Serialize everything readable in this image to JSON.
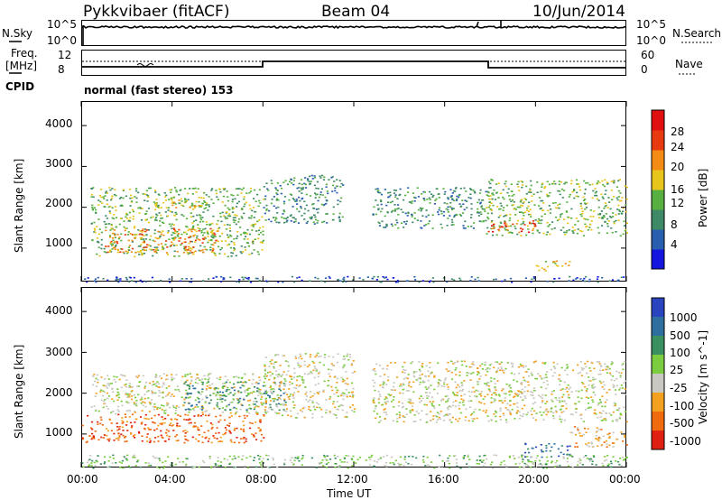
{
  "header": {
    "radar": "Pykkvibaer (fitACF)",
    "beam": "Beam 04",
    "date": "10/Jun/2014"
  },
  "top_panels": {
    "nsky_label": "N.Sky",
    "nsky_ticks": [
      "10^5",
      "10^0"
    ],
    "nsearch_label": "N.Search",
    "nsearch_ticks": [
      "10^5",
      "10^0"
    ],
    "freq_label_1": "Freq.",
    "freq_label_2": "[MHz]",
    "freq_ticks": [
      "12",
      "8"
    ],
    "nave_label": "Nave",
    "nave_ticks": [
      "60",
      "0"
    ],
    "cpid_label": "CPID",
    "cpid_text": "normal (fast stereo) 153"
  },
  "chart_data": [
    {
      "type": "heatmap",
      "title": "",
      "quantity": "Power",
      "ylabel": "Slant Range [km]",
      "ylim": [
        180,
        4600
      ],
      "yticks": [
        "1000",
        "2000",
        "3000",
        "4000"
      ],
      "xlim": [
        "00:00",
        "24:00"
      ],
      "colorbar_label": "Power [dB]",
      "colorbar_ticks": [
        "4",
        "8",
        "12",
        "16",
        "20",
        "24",
        "28"
      ],
      "colorbar_colors": [
        "#1515e0",
        "#2a5fb0",
        "#3f8a66",
        "#58b040",
        "#e8c51c",
        "#f38b15",
        "#e83a10",
        "#e01010"
      ],
      "clusters": [
        {
          "t0": 0.4,
          "t1": 8.0,
          "r0": 800,
          "r1": 2500,
          "level": 3
        },
        {
          "t0": 1.0,
          "t1": 6.0,
          "r0": 900,
          "r1": 1500,
          "level": 5
        },
        {
          "t0": 3.0,
          "t1": 5.5,
          "r0": 2000,
          "r1": 2300,
          "level": 4
        },
        {
          "t0": 8.0,
          "t1": 11.5,
          "r0": 1600,
          "r1": 2800,
          "level": 2
        },
        {
          "t0": 12.8,
          "t1": 17.8,
          "r0": 1500,
          "r1": 2500,
          "level": 2
        },
        {
          "t0": 17.8,
          "t1": 24.0,
          "r0": 1300,
          "r1": 2700,
          "level": 3
        },
        {
          "t0": 17.9,
          "t1": 20.0,
          "r0": 1400,
          "r1": 1700,
          "level": 6
        },
        {
          "t0": 20.0,
          "t1": 21.5,
          "r0": 450,
          "r1": 700,
          "level": 4
        },
        {
          "t0": 0.0,
          "t1": 24.0,
          "r0": 180,
          "r1": 320,
          "level": 1
        }
      ]
    },
    {
      "type": "heatmap",
      "title": "",
      "quantity": "Velocity",
      "ylabel": "Slant Range [km]",
      "ylim": [
        180,
        4600
      ],
      "yticks": [
        "1000",
        "2000",
        "3000",
        "4000"
      ],
      "xlim": [
        "00:00",
        "24:00"
      ],
      "xticks": [
        "00:00",
        "04:00",
        "08:00",
        "12:00",
        "16:00",
        "20:00",
        "00:00"
      ],
      "xlabel": "Time UT",
      "colorbar_label": "Velocity [m s^-1]",
      "colorbar_ticks": [
        "1000",
        "500",
        "100",
        "25",
        "-25",
        "-100",
        "-500",
        "-1000"
      ],
      "colorbar_colors": [
        "#2a44c0",
        "#2f6fa0",
        "#3a9060",
        "#7ccc40",
        "#c8c8c0",
        "#f4a020",
        "#f06a10",
        "#e02010"
      ],
      "clusters": [
        {
          "t0": 0.4,
          "t1": 8.0,
          "r0": 1500,
          "r1": 2500,
          "level": 4
        },
        {
          "t0": 0.0,
          "t1": 8.0,
          "r0": 800,
          "r1": 1500,
          "level": 6
        },
        {
          "t0": 4.5,
          "t1": 9.0,
          "r0": 1600,
          "r1": 2300,
          "level": 2
        },
        {
          "t0": 8.0,
          "t1": 12.0,
          "r0": 1400,
          "r1": 3000,
          "level": 4
        },
        {
          "t0": 12.8,
          "t1": 24.0,
          "r0": 1300,
          "r1": 2800,
          "level": 4
        },
        {
          "t0": 19.5,
          "t1": 21.5,
          "r0": 450,
          "r1": 800,
          "level": 1
        },
        {
          "t0": 21.5,
          "t1": 24.0,
          "r0": 700,
          "r1": 1200,
          "level": 5
        },
        {
          "t0": 0.0,
          "t1": 24.0,
          "r0": 180,
          "r1": 500,
          "level": 3
        }
      ]
    }
  ]
}
